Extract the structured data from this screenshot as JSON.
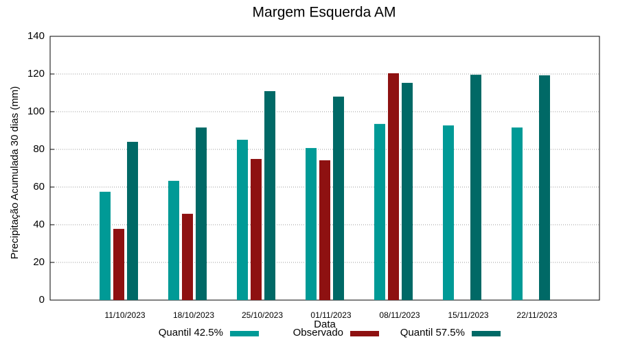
{
  "chart_data": {
    "type": "bar",
    "title": "Margem Esquerda AM",
    "x_label": "Data",
    "y_label": "Precipitação Acumulada 30 dias (mm)",
    "categories": [
      "11/10/2023",
      "18/10/2023",
      "25/10/2023",
      "01/11/2023",
      "08/11/2023",
      "15/11/2023",
      "22/11/2023"
    ],
    "series": [
      {
        "name": "Quantil 42.5%",
        "color": "#009a96",
        "values": [
          57.5,
          63.3,
          85.1,
          80.7,
          93.5,
          92.7,
          91.6
        ]
      },
      {
        "name": "Observado",
        "color": "#8e1111",
        "values": [
          37.8,
          45.8,
          74.9,
          74.2,
          120.4,
          null,
          null
        ]
      },
      {
        "name": "Quantil 57.5%",
        "color": "#006966",
        "values": [
          84,
          91.6,
          110.9,
          108,
          115.3,
          119.6,
          119.3
        ]
      }
    ],
    "ylim": [
      0,
      140
    ],
    "yticks": [
      0,
      20,
      40,
      60,
      80,
      100,
      120,
      140
    ],
    "grid": true
  }
}
